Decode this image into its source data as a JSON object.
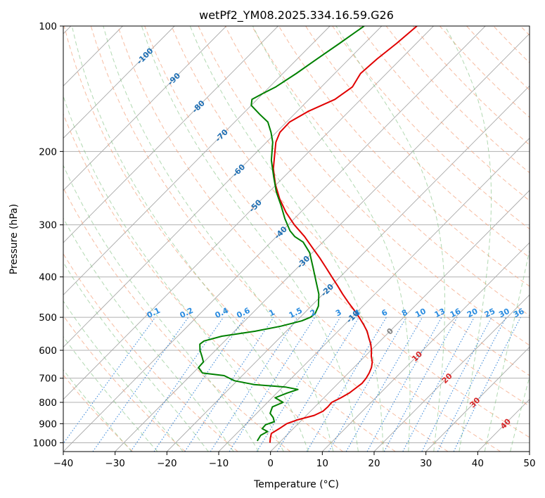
{
  "chart_data": {
    "type": "line",
    "title": "wetPf2_YM08.2025.334.16.59.G26",
    "xlabel": "Temperature (°C)",
    "ylabel": "Pressure (hPa)",
    "xlim": [
      -40,
      50
    ],
    "ylim": [
      1050,
      100
    ],
    "y_scale": "log",
    "x_ticks": [
      -40,
      -30,
      -20,
      -10,
      0,
      10,
      20,
      30,
      40,
      50
    ],
    "x_tick_labels": [
      "−40",
      "−30",
      "−20",
      "−10",
      "0",
      "10",
      "20",
      "30",
      "40",
      "50"
    ],
    "y_ticks": [
      1000,
      900,
      800,
      700,
      600,
      500,
      400,
      300,
      200,
      100
    ],
    "y_tick_labels": [
      "1000",
      "900",
      "800",
      "700",
      "600",
      "500",
      "400",
      "300",
      "200",
      "100"
    ],
    "grid": true,
    "background_lines": {
      "isotherm_color": "#a9a9a9",
      "dry_adiabat_color": "#f4a582",
      "moist_adiabat_color": "#7fbf7f",
      "mixing_ratio_color": "#1f77d4",
      "isotherm_label_color": "#1f6fb4",
      "mixing_ratio_label_color": "#2a8ce0",
      "warm_isotherm_label_color": "#d62728"
    },
    "isotherm_labels": [
      {
        "t": -100,
        "text": "-100",
        "p": 118
      },
      {
        "t": -90,
        "text": "-90",
        "p": 134
      },
      {
        "t": -80,
        "text": "-80",
        "p": 156
      },
      {
        "t": -70,
        "text": "-70",
        "p": 183
      },
      {
        "t": -60,
        "text": "-60",
        "p": 222
      },
      {
        "t": -50,
        "text": "-50",
        "p": 270
      },
      {
        "t": -40,
        "text": "-40",
        "p": 313
      },
      {
        "t": -30,
        "text": "-30",
        "p": 368
      },
      {
        "t": -20,
        "text": "-20",
        "p": 430
      },
      {
        "t": -10,
        "text": "-10",
        "p": 498
      },
      {
        "t": 0,
        "text": "0",
        "p": 540
      },
      {
        "t": 10,
        "text": "10",
        "p": 620
      },
      {
        "t": 20,
        "text": "20",
        "p": 700
      },
      {
        "t": 30,
        "text": "30",
        "p": 800
      },
      {
        "t": 40,
        "text": "40",
        "p": 900
      }
    ],
    "mixing_ratios": [
      0.1,
      0.2,
      0.4,
      0.6,
      1,
      1.5,
      2,
      3,
      4,
      6,
      8,
      10,
      13,
      16,
      20,
      25,
      30,
      36
    ],
    "mixing_ratio_labels": [
      "0.1",
      "0.2",
      "0.4",
      "0.6",
      "1",
      "1.5",
      "2",
      "3",
      "4",
      "6",
      "8",
      "10",
      "13",
      "16",
      "20",
      "25",
      "30",
      "36"
    ],
    "series": [
      {
        "color": "#e00000",
        "points": [
          {
            "p": 1000,
            "t": -1.8
          },
          {
            "p": 975,
            "t": -2.6
          },
          {
            "p": 950,
            "t": -3.3
          },
          {
            "p": 925,
            "t": -2.7
          },
          {
            "p": 900,
            "t": -2.2
          },
          {
            "p": 880,
            "t": -0.8
          },
          {
            "p": 860,
            "t": 1.5
          },
          {
            "p": 840,
            "t": 2.4
          },
          {
            "p": 820,
            "t": 2.5
          },
          {
            "p": 800,
            "t": 2.4
          },
          {
            "p": 780,
            "t": 3.3
          },
          {
            "p": 760,
            "t": 4.0
          },
          {
            "p": 740,
            "t": 4.3
          },
          {
            "p": 720,
            "t": 4.6
          },
          {
            "p": 700,
            "t": 4.4
          },
          {
            "p": 680,
            "t": 4.0
          },
          {
            "p": 660,
            "t": 3.4
          },
          {
            "p": 640,
            "t": 2.5
          },
          {
            "p": 620,
            "t": 1.2
          },
          {
            "p": 600,
            "t": 0.1
          },
          {
            "p": 580,
            "t": -1.2
          },
          {
            "p": 560,
            "t": -2.8
          },
          {
            "p": 540,
            "t": -4.4
          },
          {
            "p": 520,
            "t": -6.4
          },
          {
            "p": 500,
            "t": -8.6
          },
          {
            "p": 480,
            "t": -11.0
          },
          {
            "p": 460,
            "t": -13.6
          },
          {
            "p": 440,
            "t": -16.2
          },
          {
            "p": 420,
            "t": -18.8
          },
          {
            "p": 400,
            "t": -21.6
          },
          {
            "p": 380,
            "t": -24.5
          },
          {
            "p": 360,
            "t": -27.6
          },
          {
            "p": 340,
            "t": -31.0
          },
          {
            "p": 320,
            "t": -34.6
          },
          {
            "p": 300,
            "t": -38.8
          },
          {
            "p": 280,
            "t": -42.8
          },
          {
            "p": 260,
            "t": -46.6
          },
          {
            "p": 240,
            "t": -50.2
          },
          {
            "p": 220,
            "t": -53.6
          },
          {
            "p": 200,
            "t": -56.6
          },
          {
            "p": 190,
            "t": -58.2
          },
          {
            "p": 180,
            "t": -59.3
          },
          {
            "p": 170,
            "t": -59.4
          },
          {
            "p": 160,
            "t": -57.8
          },
          {
            "p": 150,
            "t": -55.0
          },
          {
            "p": 140,
            "t": -54.0
          },
          {
            "p": 130,
            "t": -55.0
          },
          {
            "p": 120,
            "t": -54.6
          },
          {
            "p": 110,
            "t": -53.8
          },
          {
            "p": 100,
            "t": -53.2
          }
        ]
      },
      {
        "color": "#008000",
        "points": [
          {
            "p": 990,
            "t": -4.6
          },
          {
            "p": 960,
            "t": -5.0
          },
          {
            "p": 940,
            "t": -4.4
          },
          {
            "p": 925,
            "t": -6.0
          },
          {
            "p": 905,
            "t": -6.1
          },
          {
            "p": 890,
            "t": -5.0
          },
          {
            "p": 870,
            "t": -6.0
          },
          {
            "p": 850,
            "t": -7.4
          },
          {
            "p": 820,
            "t": -8.2
          },
          {
            "p": 800,
            "t": -7.0
          },
          {
            "p": 780,
            "t": -9.4
          },
          {
            "p": 760,
            "t": -8.0
          },
          {
            "p": 745,
            "t": -6.6
          },
          {
            "p": 735,
            "t": -9.5
          },
          {
            "p": 725,
            "t": -16.0
          },
          {
            "p": 710,
            "t": -20.5
          },
          {
            "p": 690,
            "t": -23.5
          },
          {
            "p": 680,
            "t": -28.2
          },
          {
            "p": 660,
            "t": -30.0
          },
          {
            "p": 640,
            "t": -30.1
          },
          {
            "p": 620,
            "t": -31.5
          },
          {
            "p": 600,
            "t": -33.0
          },
          {
            "p": 580,
            "t": -34.2
          },
          {
            "p": 570,
            "t": -34.0
          },
          {
            "p": 555,
            "t": -31.5
          },
          {
            "p": 540,
            "t": -26.0
          },
          {
            "p": 525,
            "t": -22.0
          },
          {
            "p": 510,
            "t": -19.0
          },
          {
            "p": 500,
            "t": -18.0
          },
          {
            "p": 490,
            "t": -17.8
          },
          {
            "p": 470,
            "t": -18.6
          },
          {
            "p": 440,
            "t": -20.8
          },
          {
            "p": 410,
            "t": -23.8
          },
          {
            "p": 380,
            "t": -27.0
          },
          {
            "p": 350,
            "t": -30.5
          },
          {
            "p": 330,
            "t": -33.8
          },
          {
            "p": 320,
            "t": -36.5
          },
          {
            "p": 310,
            "t": -38.5
          },
          {
            "p": 290,
            "t": -41.8
          },
          {
            "p": 270,
            "t": -45.0
          },
          {
            "p": 250,
            "t": -48.6
          },
          {
            "p": 230,
            "t": -52.0
          },
          {
            "p": 210,
            "t": -55.6
          },
          {
            "p": 190,
            "t": -58.8
          },
          {
            "p": 180,
            "t": -61.0
          },
          {
            "p": 170,
            "t": -63.6
          },
          {
            "p": 163,
            "t": -66.6
          },
          {
            "p": 155,
            "t": -70.0
          },
          {
            "p": 150,
            "t": -71.0
          },
          {
            "p": 145,
            "t": -70.0
          },
          {
            "p": 140,
            "t": -68.8
          },
          {
            "p": 130,
            "t": -67.4
          },
          {
            "p": 120,
            "t": -66.2
          },
          {
            "p": 110,
            "t": -64.8
          },
          {
            "p": 100,
            "t": -63.4
          }
        ]
      }
    ]
  }
}
